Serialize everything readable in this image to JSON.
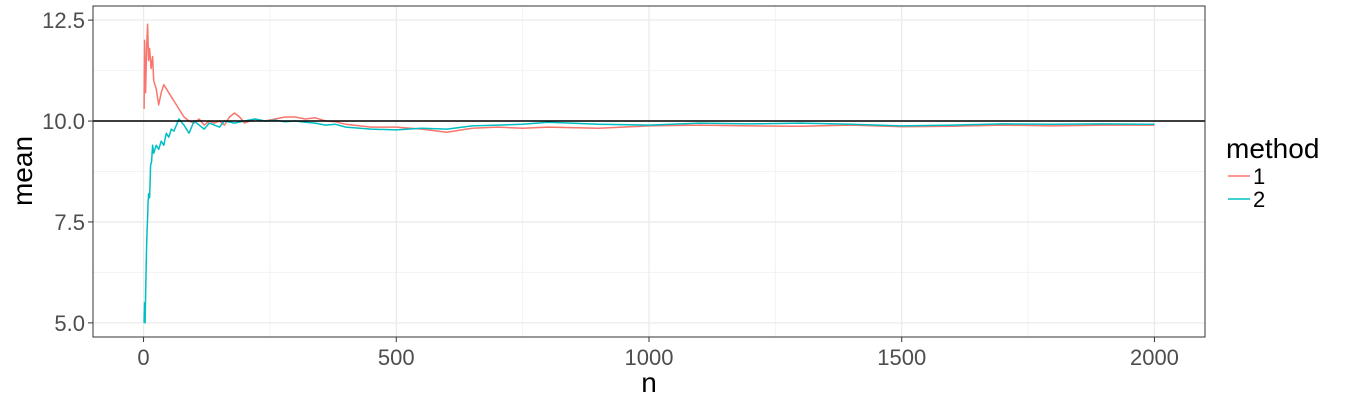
{
  "chart_data": {
    "type": "line",
    "xlabel": "n",
    "ylabel": "mean",
    "xlim": [
      -100,
      2100
    ],
    "ylim": [
      4.65,
      12.85
    ],
    "x_ticks": [
      0,
      500,
      1000,
      1500,
      2000
    ],
    "x_tick_labels": [
      "0",
      "500",
      "1000",
      "1500",
      "2000"
    ],
    "y_ticks": [
      5.0,
      7.5,
      10.0,
      12.5
    ],
    "y_tick_labels": [
      "5.0",
      "7.5",
      "10.0",
      "12.5"
    ],
    "grid": true,
    "reference_line": {
      "y": 10.0,
      "color": "#000000"
    },
    "legend": {
      "title": "method",
      "position": "right",
      "entries": [
        {
          "label": "1",
          "color": "#F8766D"
        },
        {
          "label": "2",
          "color": "#00BFC4"
        }
      ]
    },
    "series": [
      {
        "name": "1",
        "color": "#F8766D",
        "x": [
          1,
          2,
          3,
          4,
          6,
          8,
          10,
          12,
          15,
          18,
          20,
          25,
          30,
          35,
          40,
          45,
          50,
          55,
          60,
          70,
          80,
          90,
          100,
          110,
          120,
          130,
          140,
          150,
          160,
          170,
          180,
          190,
          200,
          220,
          240,
          260,
          280,
          300,
          320,
          340,
          360,
          380,
          400,
          450,
          500,
          550,
          600,
          650,
          700,
          750,
          800,
          900,
          1000,
          1100,
          1200,
          1300,
          1400,
          1500,
          1600,
          1700,
          1800,
          1900,
          2000
        ],
        "y": [
          10.3,
          12.0,
          11.1,
          10.7,
          11.8,
          12.4,
          11.5,
          11.8,
          11.3,
          11.6,
          11.0,
          10.8,
          10.4,
          10.7,
          10.9,
          10.8,
          10.7,
          10.6,
          10.5,
          10.3,
          10.1,
          10.0,
          9.95,
          10.05,
          9.9,
          10.0,
          9.95,
          10.0,
          9.9,
          10.1,
          10.2,
          10.1,
          9.95,
          10.05,
          10.0,
          10.05,
          10.1,
          10.1,
          10.05,
          10.08,
          10.0,
          9.98,
          9.92,
          9.85,
          9.85,
          9.8,
          9.72,
          9.82,
          9.85,
          9.82,
          9.85,
          9.82,
          9.88,
          9.9,
          9.88,
          9.87,
          9.9,
          9.86,
          9.87,
          9.9,
          9.88,
          9.9,
          9.9
        ]
      },
      {
        "name": "2",
        "color": "#00BFC4",
        "x": [
          1,
          2,
          3,
          4,
          5,
          6,
          7,
          8,
          9,
          10,
          12,
          14,
          16,
          18,
          20,
          25,
          30,
          35,
          40,
          45,
          50,
          55,
          60,
          70,
          80,
          90,
          100,
          110,
          120,
          130,
          140,
          150,
          160,
          180,
          200,
          220,
          240,
          260,
          280,
          300,
          320,
          340,
          360,
          380,
          400,
          450,
          500,
          550,
          600,
          650,
          700,
          750,
          800,
          900,
          1000,
          1100,
          1200,
          1300,
          1400,
          1500,
          1600,
          1700,
          1800,
          1900,
          2000
        ],
        "y": [
          5.0,
          5.5,
          5.0,
          5.7,
          6.3,
          6.9,
          7.3,
          7.6,
          8.0,
          8.2,
          8.1,
          8.9,
          9.0,
          9.4,
          9.2,
          9.4,
          9.3,
          9.5,
          9.4,
          9.7,
          9.6,
          9.8,
          9.75,
          10.05,
          9.9,
          9.7,
          10.0,
          9.9,
          9.8,
          9.95,
          9.9,
          9.85,
          10.0,
          9.95,
          10.0,
          10.05,
          10.0,
          10.02,
          9.98,
          10.0,
          9.97,
          9.95,
          9.9,
          9.92,
          9.85,
          9.8,
          9.78,
          9.82,
          9.8,
          9.88,
          9.9,
          9.92,
          9.97,
          9.92,
          9.9,
          9.95,
          9.93,
          9.95,
          9.92,
          9.88,
          9.9,
          9.93,
          9.92,
          9.93,
          9.92
        ]
      }
    ]
  }
}
